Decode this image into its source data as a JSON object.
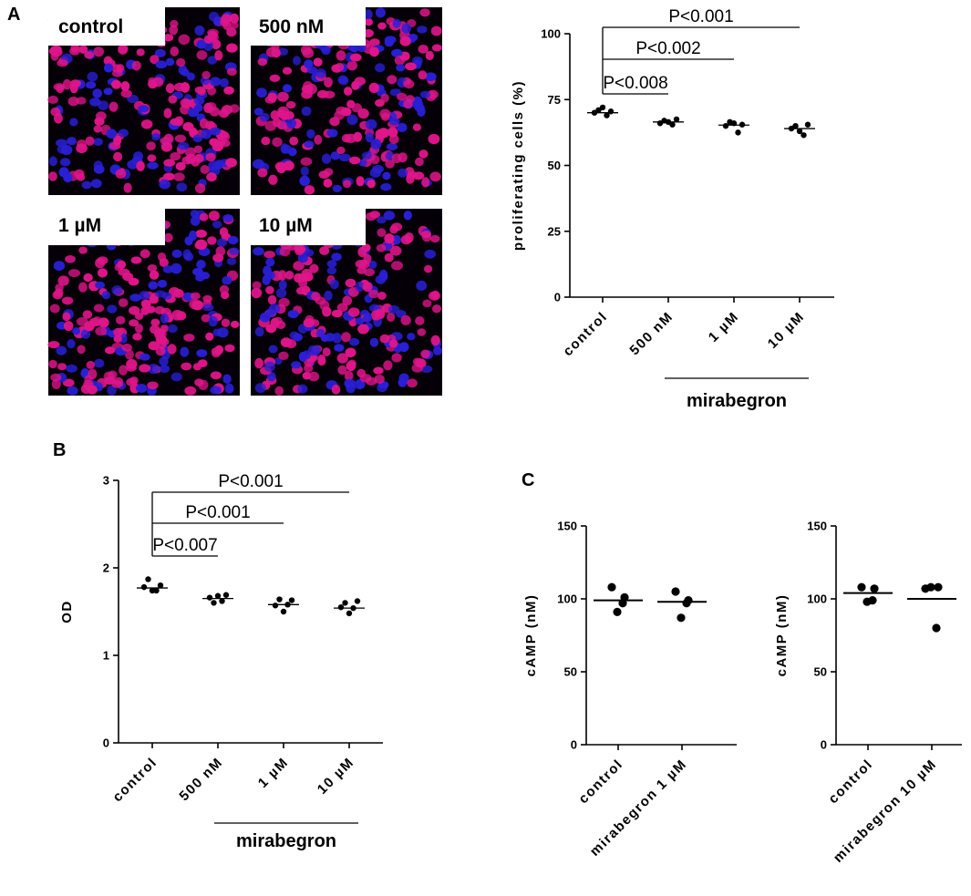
{
  "panels": {
    "A": "A",
    "B": "B",
    "C": "C"
  },
  "micrographs": [
    {
      "label": "control"
    },
    {
      "label": "500 nM"
    },
    {
      "label": "1 µM"
    },
    {
      "label": "10 µM"
    }
  ],
  "colors": {
    "nuclei_proliferating": "#e0158a",
    "nuclei_all": "#2a1fd6",
    "image_background": "#050008",
    "data_points": "#000000"
  },
  "chart_data": [
    {
      "id": "A",
      "type": "scatter",
      "ylabel": "proliferating cells (%)",
      "ylim": [
        0,
        100
      ],
      "yticks": [
        0,
        25,
        50,
        75,
        100
      ],
      "categories": [
        "control",
        "500 nM",
        "1 µM",
        "10 µM"
      ],
      "points": [
        [
          70,
          71,
          72,
          69,
          70.5
        ],
        [
          66,
          67,
          66.5,
          65.5,
          67.5
        ],
        [
          65,
          66.5,
          66,
          62.5,
          65.5
        ],
        [
          64,
          65,
          63,
          61.5,
          65.5
        ]
      ],
      "means": [
        70,
        66.5,
        65.3,
        64
      ],
      "significance": [
        {
          "from": 0,
          "to": 1,
          "label": "P<0.008"
        },
        {
          "from": 0,
          "to": 2,
          "label": "P<0.002"
        },
        {
          "from": 0,
          "to": 3,
          "label": "P<0.001"
        }
      ],
      "group_label": "mirabegron",
      "group_span": [
        1,
        3
      ]
    },
    {
      "id": "B",
      "type": "scatter",
      "ylabel": "OD",
      "ylim": [
        0,
        3
      ],
      "yticks": [
        0,
        1,
        2,
        3
      ],
      "categories": [
        "control",
        "500 nM",
        "1 µM",
        "10 µM"
      ],
      "points": [
        [
          1.78,
          1.87,
          1.74,
          1.74,
          1.8
        ],
        [
          1.66,
          1.6,
          1.68,
          1.62,
          1.69
        ],
        [
          1.57,
          1.64,
          1.5,
          1.58,
          1.63
        ],
        [
          1.55,
          1.6,
          1.48,
          1.54,
          1.62
        ]
      ],
      "means": [
        1.77,
        1.65,
        1.58,
        1.54
      ],
      "significance": [
        {
          "from": 0,
          "to": 1,
          "label": "P<0.007"
        },
        {
          "from": 0,
          "to": 2,
          "label": "P<0.001"
        },
        {
          "from": 0,
          "to": 3,
          "label": "P<0.001"
        }
      ],
      "group_label": "mirabegron",
      "group_span": [
        1,
        3
      ]
    },
    {
      "id": "C1",
      "type": "scatter",
      "ylabel": "cAMP (nM)",
      "ylim": [
        0,
        150
      ],
      "yticks": [
        0,
        50,
        100,
        150
      ],
      "categories": [
        "control",
        "mirabegron 1 µM"
      ],
      "points": [
        [
          108,
          91,
          97,
          101
        ],
        [
          105,
          87,
          97,
          99
        ]
      ],
      "means": [
        99,
        98
      ]
    },
    {
      "id": "C2",
      "type": "scatter",
      "ylabel": "cAMP (nM)",
      "ylim": [
        0,
        150
      ],
      "yticks": [
        0,
        50,
        100,
        150
      ],
      "categories": [
        "control",
        "mirabegron 10 µM"
      ],
      "points": [
        [
          108,
          98,
          99,
          107
        ],
        [
          107,
          108,
          80,
          108
        ]
      ],
      "means": [
        104,
        100
      ]
    }
  ]
}
